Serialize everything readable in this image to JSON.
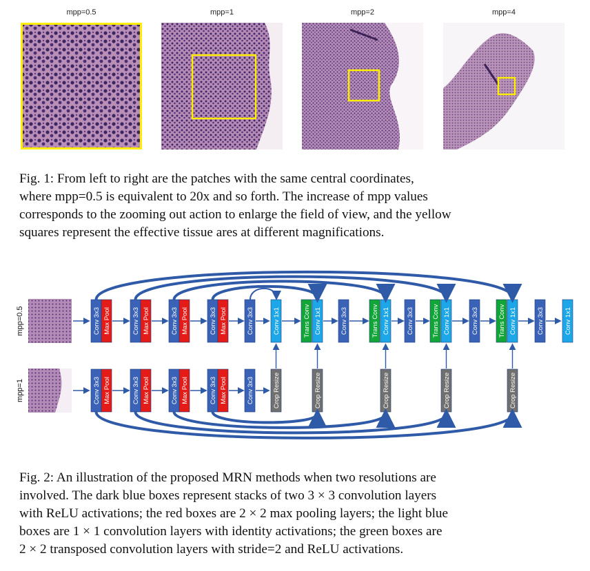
{
  "fig1": {
    "labels": [
      "mpp=0.5",
      "mpp=1",
      "mpp=2",
      "mpp=4"
    ],
    "caption_lines": [
      "Fig. 1: From left to right are the patches with the same central coordinates,",
      "where mpp=0.5 is equivalent to 20x and so forth. The increase of mpp values",
      "corresponds to the zooming out action to enlarge the field of view, and the yellow",
      "squares represent the effective tissue ares at different magnifications."
    ]
  },
  "fig2": {
    "row_labels": [
      "mpp=0.5",
      "mpp=1"
    ],
    "block_labels": {
      "conv33": "Conv 3x3",
      "maxpool": "Max Pool",
      "conv11": "Conv 1x1",
      "transconv": "Trans Conv",
      "crop": "Crop Resize"
    },
    "colors": {
      "dark_blue": "#3a63b8",
      "light_blue": "#1ea7e8",
      "red": "#e41b17",
      "green": "#12a538",
      "gray": "#707070",
      "arrow": "#2f5aa8",
      "highlight": "#ffee00"
    },
    "caption_lines": [
      "Fig. 2: An illustration of the proposed MRN methods when two resolutions are",
      "involved. The dark blue boxes represent stacks of two 3 × 3 convolution layers",
      "with ReLU activations; the red boxes are 2 × 2 max pooling layers; the light blue",
      "boxes are 1 × 1 convolution layers with identity activations; the green boxes are",
      "2 × 2 transposed convolution layers with stride=2 and ReLU activations."
    ]
  }
}
